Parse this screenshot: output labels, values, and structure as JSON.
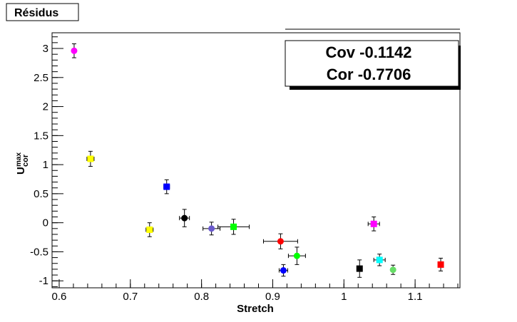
{
  "title": "Résidus",
  "stats": {
    "cov": "Cov -0.1142",
    "cor": "Cor -0.7706"
  },
  "chart_data": {
    "type": "scatter",
    "xlabel": "Stretch",
    "ylabel_main": "U",
    "ylabel_sub": "cor",
    "ylabel_sup": "max",
    "xlim": [
      0.59,
      1.163
    ],
    "ylim": [
      -1.12,
      3.27
    ],
    "xticks": [
      "0.6",
      "0.7",
      "0.8",
      "0.9",
      "1",
      "1.1"
    ],
    "yticks": [
      "-1",
      "-0.5",
      "0",
      "0.5",
      "1",
      "1.5",
      "2",
      "2.5",
      "3"
    ],
    "grid": false,
    "points": [
      {
        "x": 0.621,
        "y": 2.96,
        "xerr": 0.002,
        "yerr": 0.12,
        "color": "#ff00ff",
        "marker": "circle"
      },
      {
        "x": 0.644,
        "y": 1.1,
        "xerr": 0.005,
        "yerr": 0.13,
        "color": "#ffff00",
        "marker": "square"
      },
      {
        "x": 0.727,
        "y": -0.12,
        "xerr": 0.005,
        "yerr": 0.12,
        "color": "#ffff00",
        "marker": "square"
      },
      {
        "x": 0.751,
        "y": 0.62,
        "xerr": 0.004,
        "yerr": 0.12,
        "color": "#0000ff",
        "marker": "square"
      },
      {
        "x": 0.776,
        "y": 0.08,
        "xerr": 0.007,
        "yerr": 0.15,
        "color": "#000000",
        "marker": "circle"
      },
      {
        "x": 0.814,
        "y": -0.1,
        "xerr": 0.012,
        "yerr": 0.11,
        "color": "#6a5acd",
        "marker": "circle"
      },
      {
        "x": 0.845,
        "y": -0.07,
        "xerr": 0.022,
        "yerr": 0.13,
        "color": "#00ff00",
        "marker": "square"
      },
      {
        "x": 0.911,
        "y": -0.32,
        "xerr": 0.024,
        "yerr": 0.13,
        "color": "#ff0000",
        "marker": "circle"
      },
      {
        "x": 0.915,
        "y": -0.82,
        "xerr": 0.006,
        "yerr": 0.1,
        "color": "#0000ff",
        "marker": "circle"
      },
      {
        "x": 0.934,
        "y": -0.57,
        "xerr": 0.012,
        "yerr": 0.15,
        "color": "#00ff00",
        "marker": "circle"
      },
      {
        "x": 1.022,
        "y": -0.79,
        "xerr": 0.003,
        "yerr": 0.15,
        "color": "#000000",
        "marker": "square"
      },
      {
        "x": 1.042,
        "y": -0.02,
        "xerr": 0.008,
        "yerr": 0.12,
        "color": "#ff00ff",
        "marker": "square"
      },
      {
        "x": 1.05,
        "y": -0.64,
        "xerr": 0.008,
        "yerr": 0.1,
        "color": "#00ffff",
        "marker": "square"
      },
      {
        "x": 1.069,
        "y": -0.81,
        "xerr": 0.002,
        "yerr": 0.08,
        "color": "#66dd66",
        "marker": "circle"
      },
      {
        "x": 1.136,
        "y": -0.72,
        "xerr": 0.002,
        "yerr": 0.11,
        "color": "#ff0000",
        "marker": "square"
      }
    ]
  }
}
